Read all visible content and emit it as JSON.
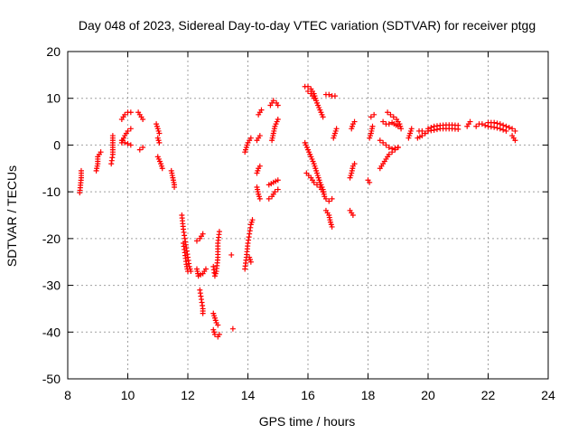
{
  "chart_data": {
    "type": "scatter",
    "title": "Day 048 of 2023, Sidereal Day-to-day VTEC variation (SDTVAR) for receiver ptgg",
    "xlabel": "GPS time / hours",
    "ylabel": "SDTVAR / TECUs",
    "xlim": [
      8,
      24
    ],
    "ylim": [
      -50,
      20
    ],
    "xticks": [
      8,
      10,
      12,
      14,
      16,
      18,
      20,
      22,
      24
    ],
    "yticks": [
      -50,
      -40,
      -30,
      -20,
      -10,
      0,
      10,
      20
    ],
    "grid": true,
    "marker": "+",
    "color": "#ff0000",
    "segments": [
      [
        [
          8.4,
          -10.2
        ],
        [
          8.45,
          -7.0
        ],
        [
          8.45,
          -5.5
        ]
      ],
      [
        [
          8.95,
          -5.5
        ],
        [
          9.0,
          -4.0
        ],
        [
          9.0,
          -2.5
        ],
        [
          9.1,
          -1.5
        ]
      ],
      [
        [
          9.45,
          -4.0
        ],
        [
          9.5,
          -2.0
        ],
        [
          9.5,
          -0.5
        ],
        [
          9.5,
          1.0
        ],
        [
          9.5,
          2.0
        ]
      ],
      [
        [
          9.8,
          0.5
        ],
        [
          9.9,
          2.0
        ],
        [
          10.0,
          3.0
        ],
        [
          10.1,
          3.5
        ]
      ],
      [
        [
          9.8,
          5.5
        ],
        [
          9.9,
          6.5
        ],
        [
          10.0,
          7.0
        ],
        [
          10.1,
          7.0
        ]
      ],
      [
        [
          9.8,
          1.0
        ],
        [
          9.9,
          0.5
        ],
        [
          10.0,
          0.3
        ],
        [
          10.1,
          0.0
        ]
      ],
      [
        [
          10.4,
          -1.0
        ],
        [
          10.5,
          -0.5
        ]
      ],
      [
        [
          10.35,
          7.0
        ],
        [
          10.45,
          6.0
        ],
        [
          10.5,
          5.5
        ]
      ],
      [
        [
          10.95,
          4.5
        ],
        [
          11.0,
          3.5
        ],
        [
          11.05,
          2.5
        ]
      ],
      [
        [
          11.0,
          1.5
        ],
        [
          11.05,
          0.5
        ]
      ],
      [
        [
          11.0,
          -2.5
        ],
        [
          11.1,
          -4.0
        ],
        [
          11.15,
          -5.0
        ]
      ],
      [
        [
          11.45,
          -5.5
        ],
        [
          11.5,
          -7.0
        ],
        [
          11.55,
          -8.5
        ],
        [
          11.55,
          -9.0
        ]
      ],
      [
        [
          11.8,
          -15.0
        ],
        [
          11.85,
          -18.0
        ],
        [
          11.9,
          -20.0
        ],
        [
          11.95,
          -22.0
        ],
        [
          12.0,
          -24.0
        ],
        [
          12.05,
          -26.0
        ],
        [
          12.1,
          -27.0
        ]
      ],
      [
        [
          11.85,
          -21.0
        ],
        [
          11.9,
          -23.0
        ],
        [
          11.95,
          -25.5
        ],
        [
          12.0,
          -27.0
        ]
      ],
      [
        [
          12.3,
          -26.5
        ],
        [
          12.35,
          -28.0
        ],
        [
          12.5,
          -27.5
        ],
        [
          12.6,
          -26.5
        ]
      ],
      [
        [
          12.3,
          -20.5
        ],
        [
          12.4,
          -20.0
        ],
        [
          12.5,
          -19.0
        ]
      ],
      [
        [
          12.4,
          -31.0
        ],
        [
          12.45,
          -33.0
        ],
        [
          12.5,
          -35.0
        ],
        [
          12.5,
          -36.0
        ]
      ],
      [
        [
          12.85,
          -26.0
        ],
        [
          12.9,
          -28.0
        ],
        [
          12.95,
          -27.0
        ],
        [
          13.0,
          -24.0
        ],
        [
          13.0,
          -21.0
        ],
        [
          13.05,
          -18.5
        ]
      ],
      [
        [
          12.85,
          -36.0
        ],
        [
          12.9,
          -37.0
        ],
        [
          12.95,
          -38.0
        ],
        [
          13.0,
          -38.5
        ]
      ],
      [
        [
          12.85,
          -39.5
        ],
        [
          12.9,
          -40.5
        ],
        [
          13.0,
          -41.0
        ],
        [
          13.05,
          -40.5
        ]
      ],
      [
        [
          13.45,
          -23.5
        ]
      ],
      [
        [
          13.5,
          -39.3
        ]
      ],
      [
        [
          13.9,
          -26.5
        ],
        [
          13.95,
          -24.0
        ],
        [
          14.0,
          -21.0
        ],
        [
          14.05,
          -19.0
        ],
        [
          14.1,
          -17.0
        ],
        [
          14.15,
          -16.0
        ]
      ],
      [
        [
          14.05,
          -24.0
        ],
        [
          14.1,
          -25.0
        ]
      ],
      [
        [
          13.9,
          -1.5
        ],
        [
          13.95,
          -0.5
        ],
        [
          14.0,
          0.5
        ],
        [
          14.1,
          1.5
        ]
      ],
      [
        [
          14.3,
          -9.0
        ],
        [
          14.35,
          -10.5
        ],
        [
          14.4,
          -11.5
        ]
      ],
      [
        [
          14.3,
          -6.0
        ],
        [
          14.35,
          -5.0
        ],
        [
          14.4,
          -4.5
        ]
      ],
      [
        [
          14.3,
          1.0
        ],
        [
          14.35,
          1.5
        ],
        [
          14.4,
          2.0
        ]
      ],
      [
        [
          14.35,
          6.5
        ],
        [
          14.4,
          7.0
        ],
        [
          14.45,
          7.5
        ]
      ],
      [
        [
          14.7,
          -11.5
        ],
        [
          14.8,
          -11.0
        ],
        [
          14.9,
          -10.0
        ],
        [
          15.0,
          -9.5
        ]
      ],
      [
        [
          14.7,
          -8.5
        ],
        [
          14.85,
          -8.0
        ],
        [
          15.0,
          -7.5
        ]
      ],
      [
        [
          14.8,
          1.0
        ],
        [
          14.85,
          2.5
        ],
        [
          14.9,
          4.0
        ],
        [
          15.0,
          5.5
        ]
      ],
      [
        [
          14.75,
          8.5
        ],
        [
          14.85,
          9.5
        ],
        [
          14.95,
          9.0
        ],
        [
          15.0,
          8.5
        ]
      ],
      [
        [
          15.9,
          0.5
        ],
        [
          16.0,
          -1.0
        ],
        [
          16.1,
          -2.5
        ],
        [
          16.2,
          -4.0
        ],
        [
          16.3,
          -6.0
        ],
        [
          16.4,
          -8.0
        ],
        [
          16.5,
          -9.5
        ],
        [
          16.55,
          -11.0
        ]
      ],
      [
        [
          15.95,
          -6.0
        ],
        [
          16.1,
          -7.0
        ],
        [
          16.2,
          -8.0
        ],
        [
          16.3,
          -8.5
        ],
        [
          16.4,
          -9.0
        ],
        [
          16.5,
          -10.0
        ]
      ],
      [
        [
          15.9,
          12.5
        ],
        [
          16.0,
          12.5
        ],
        [
          16.1,
          12.0
        ],
        [
          16.2,
          11.0
        ],
        [
          16.3,
          9.0
        ],
        [
          16.4,
          7.5
        ],
        [
          16.5,
          6.0
        ]
      ],
      [
        [
          16.0,
          11.5
        ],
        [
          16.1,
          11.0
        ],
        [
          16.2,
          10.0
        ]
      ],
      [
        [
          16.6,
          -11.5
        ],
        [
          16.7,
          -12.0
        ],
        [
          16.8,
          -11.5
        ]
      ],
      [
        [
          16.6,
          -14.0
        ],
        [
          16.7,
          -15.0
        ],
        [
          16.75,
          -16.5
        ],
        [
          16.8,
          -17.5
        ]
      ],
      [
        [
          16.6,
          10.8
        ],
        [
          16.7,
          10.8
        ],
        [
          16.8,
          10.5
        ],
        [
          16.9,
          10.5
        ]
      ],
      [
        [
          16.85,
          1.5
        ],
        [
          16.9,
          2.5
        ],
        [
          16.95,
          3.5
        ]
      ],
      [
        [
          17.4,
          -14.0
        ],
        [
          17.45,
          -14.5
        ],
        [
          17.5,
          -15.0
        ]
      ],
      [
        [
          17.4,
          -7.0
        ],
        [
          17.45,
          -6.0
        ],
        [
          17.5,
          -4.5
        ],
        [
          17.55,
          -4.0
        ]
      ],
      [
        [
          17.45,
          3.5
        ],
        [
          17.5,
          4.5
        ],
        [
          17.55,
          5.0
        ]
      ],
      [
        [
          18.0,
          -7.5
        ],
        [
          18.05,
          -8.0
        ]
      ],
      [
        [
          18.05,
          1.5
        ],
        [
          18.1,
          2.5
        ],
        [
          18.15,
          4.0
        ]
      ],
      [
        [
          18.1,
          6.0
        ],
        [
          18.2,
          6.5
        ]
      ],
      [
        [
          18.4,
          -5.0
        ],
        [
          18.5,
          -4.0
        ],
        [
          18.6,
          -3.0
        ],
        [
          18.7,
          -2.0
        ],
        [
          18.8,
          -1.5
        ],
        [
          18.9,
          -1.0
        ],
        [
          19.0,
          -0.5
        ]
      ],
      [
        [
          18.4,
          1.0
        ],
        [
          18.5,
          0.5
        ],
        [
          18.6,
          0.0
        ],
        [
          18.7,
          -0.5
        ],
        [
          18.8,
          -0.8
        ],
        [
          19.0,
          -0.5
        ]
      ],
      [
        [
          18.5,
          5.0
        ],
        [
          18.6,
          4.5
        ],
        [
          18.7,
          4.5
        ],
        [
          18.8,
          4.8
        ],
        [
          19.0,
          4.0
        ]
      ],
      [
        [
          18.65,
          7.0
        ],
        [
          18.75,
          6.5
        ],
        [
          18.85,
          6.0
        ],
        [
          18.95,
          5.5
        ],
        [
          19.05,
          4.5
        ],
        [
          19.1,
          3.5
        ]
      ],
      [
        [
          19.35,
          1.5
        ],
        [
          19.4,
          2.5
        ],
        [
          19.45,
          3.5
        ]
      ],
      [
        [
          19.65,
          1.5
        ],
        [
          19.8,
          2.0
        ],
        [
          19.9,
          2.5
        ],
        [
          20.0,
          3.0
        ]
      ],
      [
        [
          19.7,
          3.0
        ],
        [
          19.8,
          3.0
        ],
        [
          19.9,
          2.5
        ]
      ],
      [
        [
          20.0,
          3.5
        ],
        [
          20.2,
          4.0
        ],
        [
          20.4,
          4.2
        ],
        [
          20.6,
          4.3
        ],
        [
          20.8,
          4.3
        ],
        [
          21.0,
          4.2
        ]
      ],
      [
        [
          20.0,
          3.0
        ],
        [
          20.2,
          3.2
        ],
        [
          20.4,
          3.5
        ],
        [
          20.6,
          3.5
        ],
        [
          20.8,
          3.5
        ],
        [
          21.0,
          3.4
        ]
      ],
      [
        [
          21.3,
          4.0
        ],
        [
          21.35,
          4.5
        ],
        [
          21.4,
          5.0
        ]
      ],
      [
        [
          21.6,
          4.0
        ],
        [
          21.7,
          4.5
        ],
        [
          21.8,
          4.5
        ],
        [
          21.9,
          4.2
        ]
      ],
      [
        [
          22.0,
          4.8
        ],
        [
          22.2,
          4.8
        ],
        [
          22.4,
          4.5
        ],
        [
          22.6,
          4.0
        ],
        [
          22.8,
          3.5
        ],
        [
          22.9,
          3.0
        ]
      ],
      [
        [
          22.0,
          4.0
        ],
        [
          22.2,
          3.8
        ],
        [
          22.4,
          3.5
        ],
        [
          22.6,
          3.0
        ]
      ],
      [
        [
          22.8,
          2.0
        ],
        [
          22.85,
          1.5
        ],
        [
          22.9,
          1.0
        ]
      ]
    ]
  }
}
